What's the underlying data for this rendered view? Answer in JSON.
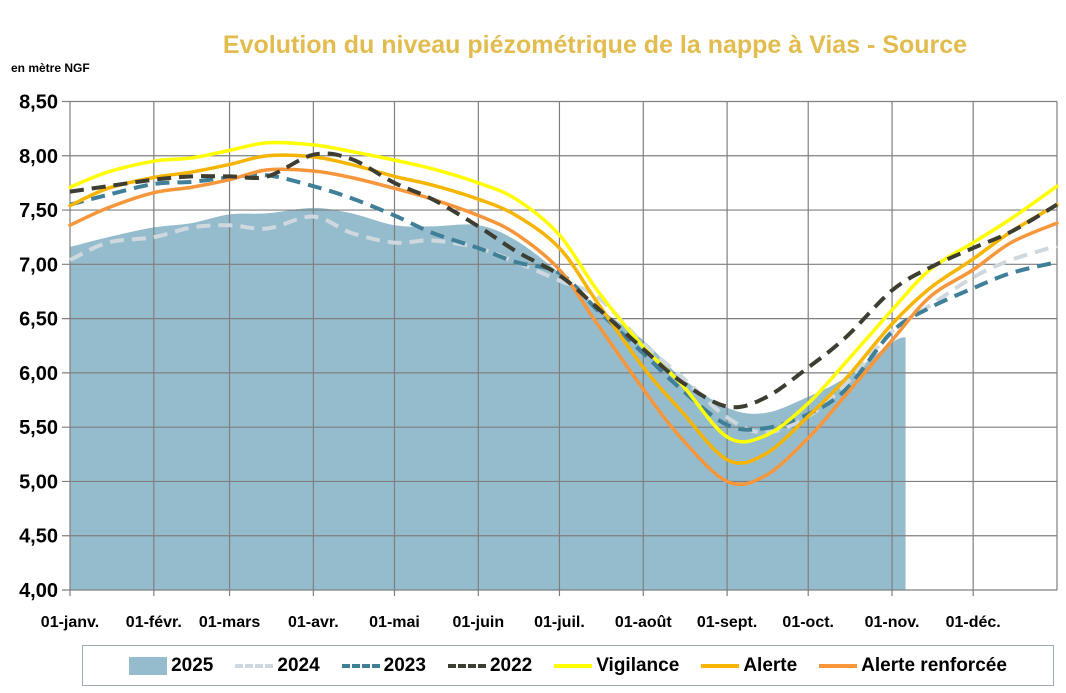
{
  "chart_data": {
    "type": "line",
    "title": "Evolution du niveau piézométrique de la nappe à Vias  - Source",
    "ylabel": "en mètre NGF",
    "xlabel": "",
    "ylim": [
      4.0,
      8.5
    ],
    "xlim_days": [
      0,
      365
    ],
    "grid": true,
    "legend_position": "bottom",
    "yticks": [
      "4,00",
      "4,50",
      "5,00",
      "5,50",
      "6,00",
      "6,50",
      "7,00",
      "7,50",
      "8,00",
      "8,50"
    ],
    "ytick_values": [
      4.0,
      4.5,
      5.0,
      5.5,
      6.0,
      6.5,
      7.0,
      7.5,
      8.0,
      8.5
    ],
    "xticks": [
      "01-janv.",
      "01-févr.",
      "01-mars",
      "01-avr.",
      "01-mai",
      "01-juin",
      "01-juil.",
      "01-août",
      "01-sept.",
      "01-oct.",
      "01-nov.",
      "01-déc."
    ],
    "xtick_days": [
      0,
      31,
      59,
      90,
      120,
      151,
      181,
      212,
      243,
      273,
      304,
      334
    ],
    "x_days": [
      0,
      14,
      31,
      45,
      59,
      73,
      90,
      104,
      120,
      134,
      151,
      165,
      181,
      195,
      212,
      226,
      243,
      257,
      273,
      287,
      304,
      318,
      334,
      348,
      365
    ],
    "series": [
      {
        "name": "2025",
        "style": "area",
        "color": "#95bccd",
        "x_days": [
          0,
          14,
          31,
          45,
          59,
          73,
          90,
          104,
          120,
          134,
          151,
          165,
          181,
          195,
          212,
          226,
          243,
          257,
          273,
          287,
          304,
          309
        ],
        "values": [
          7.16,
          7.25,
          7.34,
          7.38,
          7.46,
          7.47,
          7.52,
          7.47,
          7.36,
          7.35,
          7.36,
          7.22,
          6.92,
          6.61,
          6.3,
          5.96,
          5.68,
          5.63,
          5.78,
          5.96,
          6.28,
          6.33
        ]
      },
      {
        "name": "2024",
        "style": "dashed",
        "color": "#cfd8de",
        "values": [
          7.04,
          7.2,
          7.25,
          7.34,
          7.36,
          7.33,
          7.44,
          7.29,
          7.2,
          7.22,
          7.15,
          7.02,
          6.85,
          6.7,
          6.27,
          5.97,
          5.59,
          5.45,
          5.6,
          5.9,
          6.38,
          6.62,
          6.88,
          7.04,
          7.17
        ]
      },
      {
        "name": "2023",
        "style": "dashed",
        "color": "#3f7f98",
        "values": [
          7.55,
          7.64,
          7.74,
          7.76,
          7.8,
          7.82,
          7.72,
          7.61,
          7.45,
          7.29,
          7.15,
          7.02,
          6.92,
          6.58,
          6.18,
          5.85,
          5.52,
          5.49,
          5.62,
          5.85,
          6.38,
          6.6,
          6.78,
          6.92,
          7.02
        ]
      },
      {
        "name": "2022",
        "style": "dashed",
        "color": "#3d3d32",
        "values": [
          7.67,
          7.72,
          7.78,
          7.81,
          7.81,
          7.81,
          8.01,
          7.97,
          7.75,
          7.6,
          7.35,
          7.12,
          6.9,
          6.6,
          6.22,
          5.92,
          5.69,
          5.77,
          6.05,
          6.33,
          6.76,
          6.97,
          7.15,
          7.3,
          7.55
        ]
      },
      {
        "name": "Vigilance",
        "style": "solid",
        "color": "#ffff00",
        "values": [
          7.71,
          7.85,
          7.95,
          7.98,
          8.05,
          8.12,
          8.1,
          8.04,
          7.96,
          7.88,
          7.75,
          7.6,
          7.27,
          6.76,
          6.24,
          5.9,
          5.41,
          5.42,
          5.72,
          6.1,
          6.58,
          6.95,
          7.2,
          7.42,
          7.72
        ]
      },
      {
        "name": "Alerte",
        "style": "solid",
        "color": "#f7b500",
        "values": [
          7.54,
          7.7,
          7.8,
          7.85,
          7.92,
          8.0,
          7.99,
          7.92,
          7.81,
          7.73,
          7.6,
          7.45,
          7.15,
          6.65,
          6.05,
          5.65,
          5.2,
          5.25,
          5.6,
          5.95,
          6.45,
          6.78,
          7.05,
          7.3,
          7.55
        ]
      },
      {
        "name": "Alerte renforcée",
        "style": "solid",
        "color": "#f7963a",
        "values": [
          7.36,
          7.52,
          7.66,
          7.71,
          7.78,
          7.87,
          7.86,
          7.8,
          7.7,
          7.6,
          7.45,
          7.28,
          6.95,
          6.45,
          5.85,
          5.4,
          5.0,
          5.05,
          5.4,
          5.8,
          6.3,
          6.7,
          6.95,
          7.2,
          7.38
        ]
      }
    ]
  }
}
